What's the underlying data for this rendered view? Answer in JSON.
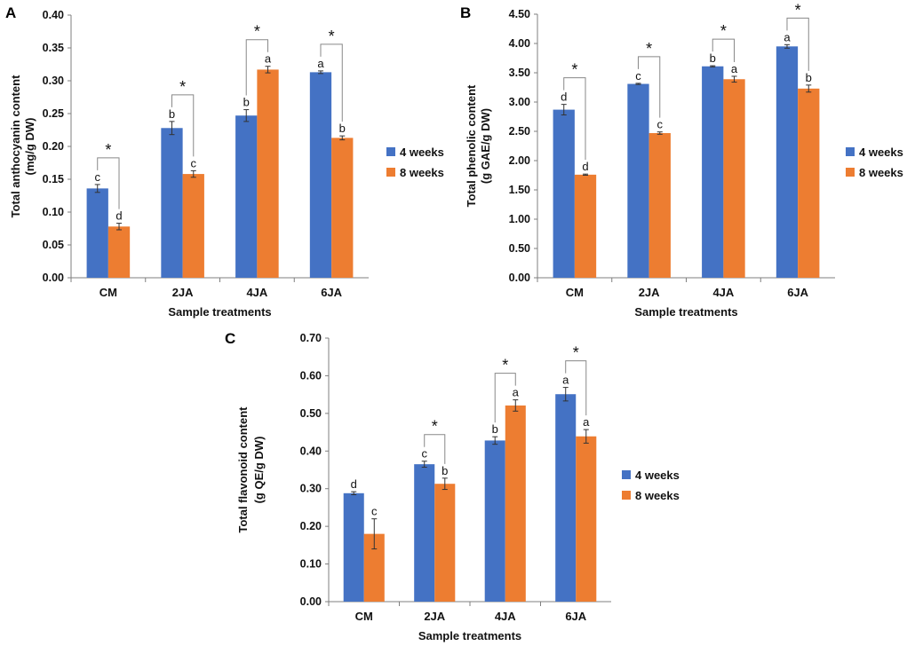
{
  "chart_data": [
    {
      "panel": "A",
      "type": "bar",
      "categories": [
        "CM",
        "2JA",
        "4JA",
        "6JA"
      ],
      "series": [
        {
          "name": "4 weeks",
          "color": "#4472C4",
          "values": [
            0.136,
            0.228,
            0.247,
            0.313
          ],
          "errors": [
            0.006,
            0.01,
            0.009,
            0.002
          ],
          "letters": [
            "c",
            "b",
            "b",
            "a"
          ]
        },
        {
          "name": "8 weeks",
          "color": "#ED7D31",
          "values": [
            0.078,
            0.158,
            0.317,
            0.213
          ],
          "errors": [
            0.005,
            0.005,
            0.005,
            0.003
          ],
          "letters": [
            "d",
            "c",
            "a",
            "b"
          ]
        }
      ],
      "significance": [
        "*",
        "*",
        "*",
        "*"
      ],
      "yticks": [
        "0.00",
        "0.05",
        "0.10",
        "0.15",
        "0.20",
        "0.25",
        "0.30",
        "0.35",
        "0.40"
      ],
      "ylim": [
        0,
        0.4
      ],
      "xlabel": "Sample treatments",
      "ylabel_line1": "Total anthocyanin content",
      "ylabel_line2": "(mg/g DW)",
      "legend_position": "right"
    },
    {
      "panel": "B",
      "type": "bar",
      "categories": [
        "CM",
        "2JA",
        "4JA",
        "6JA"
      ],
      "series": [
        {
          "name": "4 weeks",
          "color": "#4472C4",
          "values": [
            2.87,
            3.31,
            3.61,
            3.95
          ],
          "errors": [
            0.09,
            0.01,
            0.01,
            0.03
          ],
          "letters": [
            "d",
            "c",
            "b",
            "a"
          ]
        },
        {
          "name": "8 weeks",
          "color": "#ED7D31",
          "values": [
            1.76,
            2.47,
            3.39,
            3.23
          ],
          "errors": [
            0.01,
            0.02,
            0.05,
            0.06
          ],
          "letters": [
            "d",
            "c",
            "a",
            "b"
          ]
        }
      ],
      "significance": [
        "*",
        "*",
        "*",
        "*"
      ],
      "yticks": [
        "0.00",
        "0.50",
        "1.00",
        "1.50",
        "2.00",
        "2.50",
        "3.00",
        "3.50",
        "4.00",
        "4.50"
      ],
      "ylim": [
        0,
        4.5
      ],
      "xlabel": "Sample treatments",
      "ylabel_line1": "Total phenolic content",
      "ylabel_line2": "(g GAE/g DW)",
      "legend_position": "right"
    },
    {
      "panel": "C",
      "type": "bar",
      "categories": [
        "CM",
        "2JA",
        "4JA",
        "6JA"
      ],
      "series": [
        {
          "name": "4 weeks",
          "color": "#4472C4",
          "values": [
            0.288,
            0.365,
            0.428,
            0.551
          ],
          "errors": [
            0.004,
            0.008,
            0.01,
            0.018
          ],
          "letters": [
            "d",
            "c",
            "b",
            "a"
          ]
        },
        {
          "name": "8 weeks",
          "color": "#ED7D31",
          "values": [
            0.18,
            0.313,
            0.521,
            0.439
          ],
          "errors": [
            0.04,
            0.015,
            0.015,
            0.018
          ],
          "letters": [
            "c",
            "b",
            "a",
            "a"
          ]
        }
      ],
      "significance": [
        "",
        "*",
        "*",
        "*"
      ],
      "yticks": [
        "0.00",
        "0.10",
        "0.20",
        "0.30",
        "0.40",
        "0.50",
        "0.60",
        "0.70"
      ],
      "ylim": [
        0,
        0.7
      ],
      "xlabel": "Sample treatments",
      "ylabel_line1": "Total flavonoid content",
      "ylabel_line2": "(g QE/g DW)",
      "legend_position": "right"
    }
  ]
}
